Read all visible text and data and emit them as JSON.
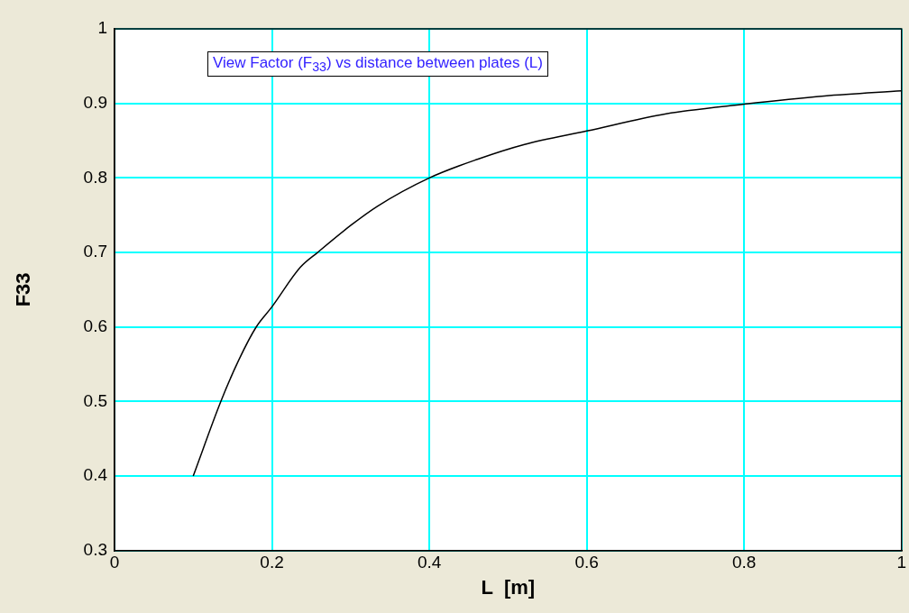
{
  "chart_data": {
    "type": "line",
    "title": "View Factor (F$_{33}$) vs distance between plates (L)",
    "xlabel": "L  [m]",
    "ylabel": "F33",
    "series": [
      {
        "color": "#000000",
        "x": [
          0.1,
          0.135,
          0.158,
          0.18,
          0.2,
          0.236,
          0.258,
          0.301,
          0.334,
          0.4,
          0.461,
          0.521,
          0.6,
          0.701,
          0.8,
          0.902,
          1.0
        ],
        "values": [
          0.4,
          0.5,
          0.556,
          0.6,
          0.627,
          0.68,
          0.7,
          0.737,
          0.762,
          0.8,
          0.825,
          0.845,
          0.863,
          0.886,
          0.899,
          0.91,
          0.917
        ]
      }
    ],
    "xlim": [
      0,
      1
    ],
    "xticks": [
      0,
      0.2,
      0.4,
      0.6,
      0.8,
      1
    ],
    "ylim": [
      0.3,
      1
    ],
    "yticks": [
      0.3,
      0.4,
      0.5,
      0.6,
      0.7,
      0.8,
      0.9,
      1
    ],
    "grid": true,
    "legend": false,
    "marker": "none",
    "line_style": "solid"
  }
}
